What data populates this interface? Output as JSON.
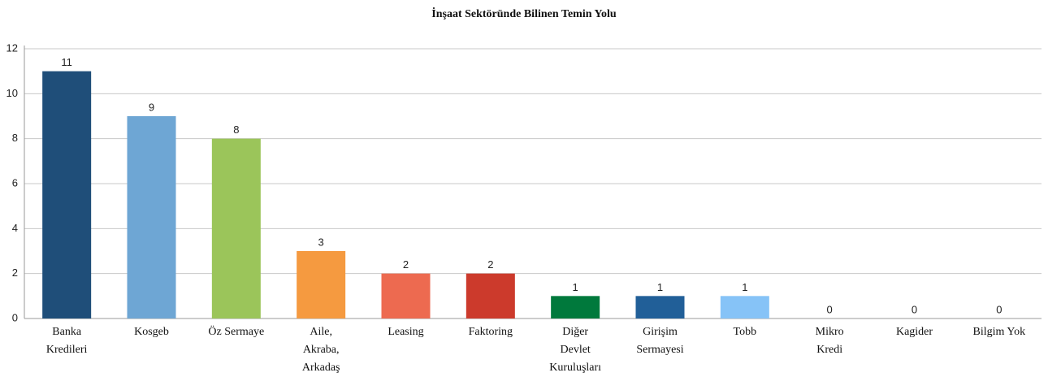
{
  "chart_data": {
    "type": "bar",
    "title": "İnşaat Sektöründe Bilinen Temin Yolu",
    "categories": [
      "Banka Kredileri",
      "Kosgeb",
      "Öz Sermaye",
      "Aile, Akraba, Arkadaş",
      "Leasing",
      "Faktoring",
      "Diğer Devlet Kuruluşları",
      "Girişim Sermayesi",
      "Tobb",
      "Mikro Kredi",
      "Kagider",
      "Bilgim Yok"
    ],
    "values": [
      11,
      9,
      8,
      3,
      2,
      2,
      1,
      1,
      1,
      0,
      0,
      0
    ],
    "colors": [
      "#1f4e79",
      "#6ea6d4",
      "#9bc55a",
      "#f59a40",
      "#ed6a50",
      "#cc3a2c",
      "#00793c",
      "#215f98",
      "#86c3f7",
      "#1f4e79",
      "#1f4e79",
      "#1f4e79"
    ],
    "ylim": [
      0,
      12
    ],
    "yticks": [
      0,
      2,
      4,
      6,
      8,
      10,
      12
    ],
    "grid": true
  }
}
